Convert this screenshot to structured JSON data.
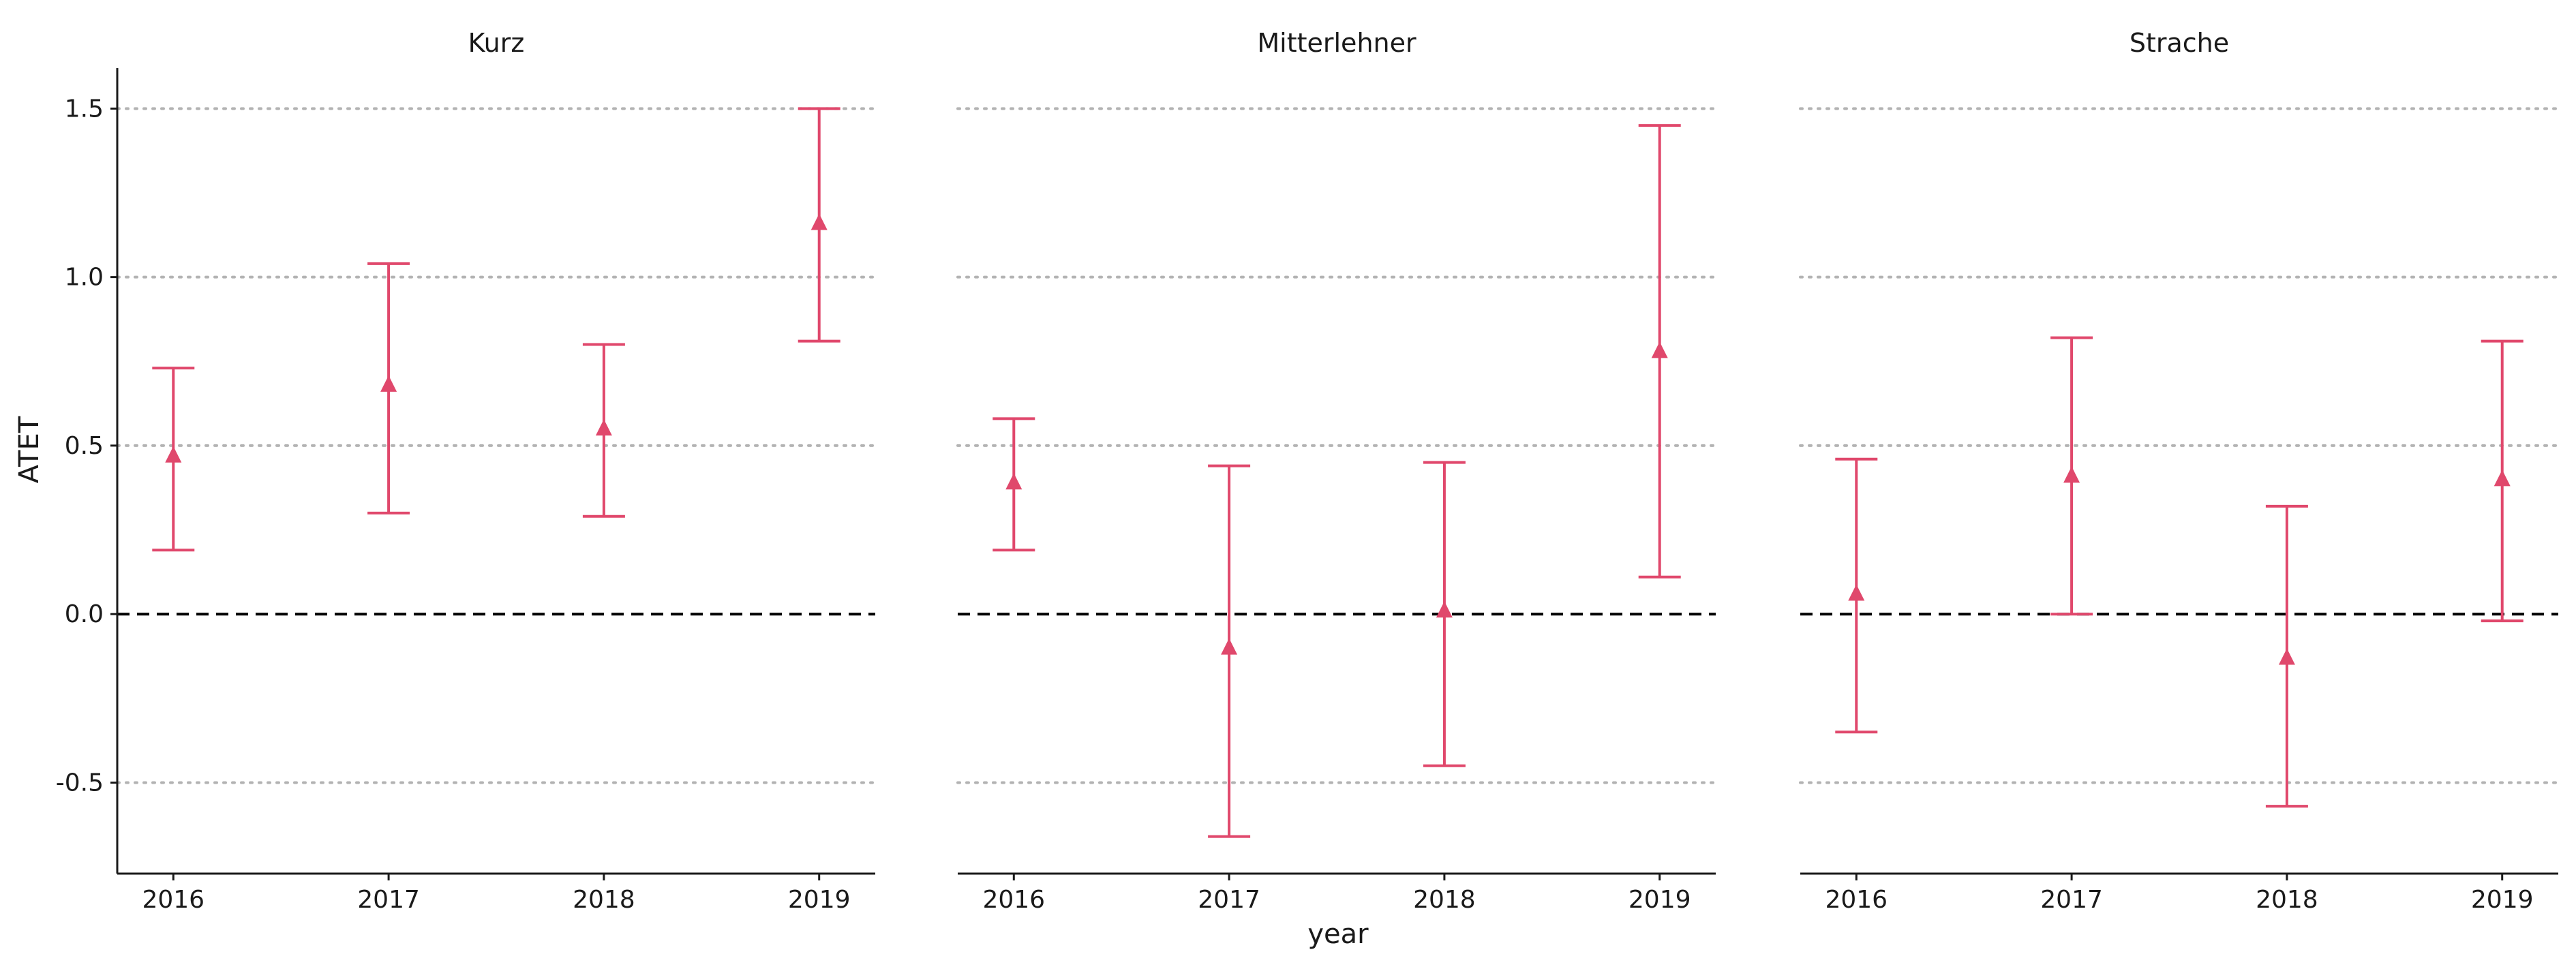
{
  "chart_data": {
    "type": "errorbar",
    "xlabel": "year",
    "ylabel": "ATET",
    "ylim": [
      -0.77,
      1.62
    ],
    "yticks": [
      -0.5,
      0.0,
      0.5,
      1.0,
      1.5
    ],
    "ytick_labels": [
      "-0.5",
      "0.0",
      "0.5",
      "1.0",
      "1.5"
    ],
    "categories": [
      "2016",
      "2017",
      "2018",
      "2019"
    ],
    "reference_line": 0,
    "grid": "horizontal dotted",
    "marker": "triangle",
    "color": "#e0486c",
    "facets": [
      {
        "title": "Kurz",
        "points": [
          {
            "year": "2016",
            "estimate": 0.47,
            "lower": 0.19,
            "upper": 0.73
          },
          {
            "year": "2017",
            "estimate": 0.68,
            "lower": 0.3,
            "upper": 1.04
          },
          {
            "year": "2018",
            "estimate": 0.55,
            "lower": 0.29,
            "upper": 0.8
          },
          {
            "year": "2019",
            "estimate": 1.16,
            "lower": 0.81,
            "upper": 1.5
          }
        ]
      },
      {
        "title": "Mitterlehner",
        "points": [
          {
            "year": "2016",
            "estimate": 0.39,
            "lower": 0.19,
            "upper": 0.58
          },
          {
            "year": "2017",
            "estimate": -0.1,
            "lower": -0.66,
            "upper": 0.44
          },
          {
            "year": "2018",
            "estimate": 0.01,
            "lower": -0.45,
            "upper": 0.45
          },
          {
            "year": "2019",
            "estimate": 0.78,
            "lower": 0.11,
            "upper": 1.45
          }
        ]
      },
      {
        "title": "Strache",
        "points": [
          {
            "year": "2016",
            "estimate": 0.06,
            "lower": -0.35,
            "upper": 0.46
          },
          {
            "year": "2017",
            "estimate": 0.41,
            "lower": 0.0,
            "upper": 0.82
          },
          {
            "year": "2018",
            "estimate": -0.13,
            "lower": -0.57,
            "upper": 0.32
          },
          {
            "year": "2019",
            "estimate": 0.4,
            "lower": -0.02,
            "upper": 0.81
          }
        ]
      }
    ]
  }
}
